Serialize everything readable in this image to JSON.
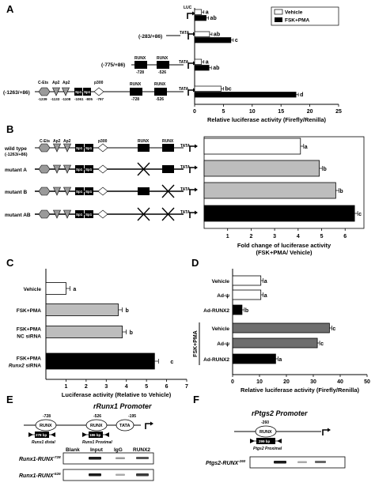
{
  "panels": {
    "A": "A",
    "B": "B",
    "C": "C",
    "D": "D",
    "E": "E",
    "F": "F"
  },
  "colors": {
    "vehicle": "#ffffff",
    "fsk_pma": "#000000",
    "mutant_bar": "#bdbdbd",
    "nc_sirna": "#bdbdbd",
    "d_fsk_bar": "#6e6e6e"
  },
  "panelA": {
    "legend": {
      "vehicle": "Vehicle",
      "fsk": "FSK+PMA"
    },
    "luc_label": "LUC",
    "tata": "TATA",
    "runx": "RUNX",
    "p300": "p300",
    "construct_labels": [
      "",
      "(-283/+86)",
      "(-775/+86)",
      "(-1263/+86)"
    ],
    "site_labels": {
      "cets": "C-Ets",
      "ap2": "Ap2",
      "sp1": "Sp1",
      "p300": "p300",
      "runx": "RUNX"
    },
    "positions": [
      "-1239",
      "-1133",
      "-1108",
      "-1061",
      "-805",
      "-797",
      "-728",
      "-526"
    ],
    "chart_data": {
      "type": "bar",
      "categories": [
        "basic",
        "(-283/+86)",
        "(-775/+86)",
        "(-1263/+86)"
      ],
      "series": [
        {
          "name": "Vehicle",
          "values": [
            1.2,
            2.6,
            1.2,
            4.6
          ]
        },
        {
          "name": "FSK+PMA",
          "values": [
            2.0,
            6.3,
            2.5,
            17.6
          ]
        }
      ],
      "stat_labels": [
        [
          "a",
          "ab"
        ],
        [
          "ab",
          "c"
        ],
        [
          "a",
          "ab"
        ],
        [
          "bc",
          "d"
        ]
      ],
      "xlabel": "Relative luciferase activity (Firefly/Renilla)",
      "xticks": [
        0,
        5,
        10,
        15,
        20,
        25
      ],
      "xlim": [
        0,
        25
      ]
    }
  },
  "panelB": {
    "construct_labels": [
      "wild type",
      "mutant A",
      "mutant B",
      "mutant AB"
    ],
    "wt_range": "(-1263/+86)",
    "chart_data": {
      "type": "bar",
      "categories": [
        "wild type",
        "mutant A",
        "mutant B",
        "mutant AB"
      ],
      "values": [
        4.1,
        4.9,
        5.6,
        6.4
      ],
      "stat_labels": [
        "a",
        "b",
        "b",
        "c"
      ],
      "xlabel": "Fold change of luciferase activity",
      "xlabel2": "(FSK+PMA/ Vehicle)",
      "xticks": [
        1,
        2,
        3,
        4,
        5,
        6
      ],
      "xlim": [
        0,
        6.8
      ]
    }
  },
  "panelC": {
    "chart_data": {
      "type": "bar",
      "categories": [
        "Vehicle",
        "FSK+PMA",
        "FSK+PMA NC siRNA",
        "FSK+PMA Runx2 siRNA"
      ],
      "label_lines": [
        [
          "Vehicle"
        ],
        [
          "FSK+PMA"
        ],
        [
          "FSK+PMA",
          "NC siRNA"
        ],
        [
          "FSK+PMA",
          "Runx2 siRNA"
        ]
      ],
      "values": [
        1.0,
        3.6,
        3.8,
        5.4
      ],
      "stat_labels": [
        "a",
        "b",
        "b",
        "c"
      ],
      "xlabel": "Luciferase activity (Relative to Vehicle)",
      "xticks": [
        1,
        2,
        3,
        4,
        5,
        6,
        7
      ],
      "xlim": [
        0,
        7
      ]
    }
  },
  "panelD": {
    "group_label": "FSK+PMA",
    "chart_data": {
      "type": "bar",
      "categories": [
        "Vehicle",
        "Ad-ψ",
        "Ad-RUNX2",
        "Vehicle",
        "Ad-ψ",
        "Ad-RUNX2"
      ],
      "values": [
        10.5,
        10.5,
        3.5,
        36,
        31.5,
        16
      ],
      "stat_labels": [
        "a",
        "a",
        "b",
        "c",
        "c",
        "a"
      ],
      "xlabel": "Relative luciferase activity (Firefly/Renilla)",
      "xticks": [
        0,
        10,
        20,
        30,
        40,
        50
      ],
      "xlim": [
        0,
        50
      ]
    }
  },
  "panelE": {
    "title": "rRunx1 Promoter",
    "runx": "RUNX",
    "tata": "TATA",
    "pos1": "-728",
    "pos2": "-526",
    "pos3": "-195",
    "amp1": "278 bp",
    "amp2": "186 bp",
    "distal": "Runx1 distal",
    "proximal": "Runx1 Proximal",
    "lanes": [
      "Blank",
      "Input",
      "IgG",
      "RUNX2"
    ],
    "row1": "Runx1-RUNX",
    "row1sup": "-728",
    "row2": "Runx1-RUNX",
    "row2sup": "-526"
  },
  "panelF": {
    "title": "rPtgs2 Promoter",
    "runx": "RUNX",
    "pos": "-260",
    "amp": "299 bp",
    "proximal": "Ptgs2 Proximal",
    "row": "Ptgs2-RUNX",
    "rowsup": "-260"
  }
}
